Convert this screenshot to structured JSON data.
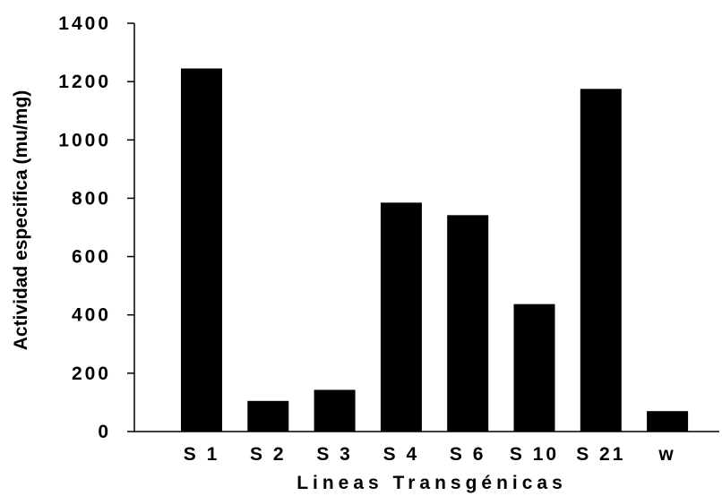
{
  "chart_data": {
    "type": "bar",
    "categories": [
      "S1",
      "S2",
      "S3",
      "S4",
      "S6",
      "S10",
      "S21",
      "w"
    ],
    "category_labels": [
      "S 1",
      "S 2",
      "S 3",
      "S 4",
      "S 6",
      "S 10",
      "S 21",
      "w"
    ],
    "values": [
      1245,
      105,
      143,
      785,
      742,
      437,
      1175,
      70
    ],
    "xlabel": "Lineas Transgénicas",
    "ylabel": "Actividad especifica (mu/mg)",
    "ylim": [
      0,
      1400
    ],
    "yticks": [
      0,
      200,
      400,
      600,
      800,
      1000,
      1200,
      1400
    ],
    "grid": false,
    "bar_color": "#000000"
  }
}
